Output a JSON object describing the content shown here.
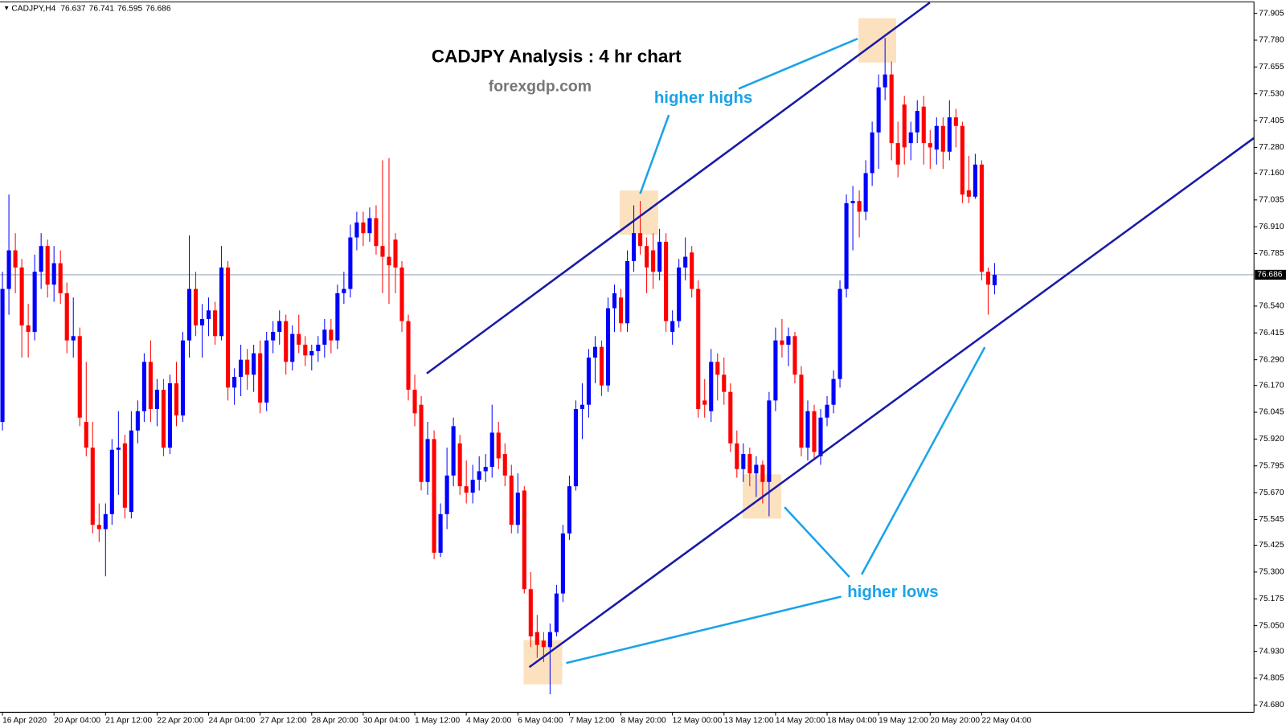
{
  "chart_data": {
    "type": "candlestick",
    "symbol": "CADJPY,H4",
    "title": "CADJPY Analysis : 4 hr chart",
    "subtitle": "forexgdp.com",
    "annotations": [
      "higher highs",
      "higher lows"
    ],
    "bull_color": "#0000ff",
    "bear_color": "#ff0000",
    "ylim": [
      74.646,
      77.959
    ],
    "yticks": [
      77.905,
      {
        "value": 77.78,
        "label": "77.780"
      },
      77.655,
      {
        "value": 77.53,
        "label": "77.530"
      },
      77.405,
      {
        "value": 77.28,
        "label": "77.280"
      },
      {
        "value": 77.16,
        "label": "77.160"
      },
      77.035,
      {
        "value": 76.91,
        "label": "76.910"
      },
      76.785,
      {
        "value": 76.54,
        "label": "76.540"
      },
      76.415,
      {
        "value": 76.29,
        "label": "76.290"
      },
      {
        "value": 76.17,
        "label": "76.170"
      },
      76.045,
      {
        "value": 75.92,
        "label": "75.920"
      },
      75.795,
      {
        "value": 75.67,
        "label": "75.670"
      },
      75.545,
      75.425,
      {
        "value": 75.3,
        "label": "75.300"
      },
      75.175,
      {
        "value": 75.05,
        "label": "75.050"
      },
      {
        "value": 74.93,
        "label": "74.930"
      },
      74.805,
      {
        "value": 74.68,
        "label": "74.680"
      }
    ],
    "categories": [
      "16 Apr 2020",
      null,
      null,
      null,
      null,
      null,
      null,
      null,
      "20 Apr 04:00",
      null,
      null,
      null,
      null,
      null,
      null,
      null,
      "21 Apr 12:00",
      null,
      null,
      null,
      null,
      null,
      null,
      null,
      "22 Apr 20:00",
      null,
      null,
      null,
      null,
      null,
      null,
      null,
      "24 Apr 04:00",
      null,
      null,
      null,
      null,
      null,
      null,
      null,
      "27 Apr 12:00",
      null,
      null,
      null,
      null,
      null,
      null,
      null,
      "28 Apr 20:00",
      null,
      null,
      null,
      null,
      null,
      null,
      null,
      "30 Apr 04:00",
      null,
      null,
      null,
      null,
      null,
      null,
      null,
      "1 May 12:00",
      null,
      null,
      null,
      null,
      null,
      null,
      null,
      "4 May 20:00",
      null,
      null,
      null,
      null,
      null,
      null,
      null,
      "6 May 04:00",
      null,
      null,
      null,
      null,
      null,
      null,
      null,
      "7 May 12:00",
      null,
      null,
      null,
      null,
      null,
      null,
      null,
      "8 May 20:00",
      null,
      null,
      null,
      null,
      null,
      null,
      null,
      "12 May 00:00",
      null,
      null,
      null,
      null,
      null,
      null,
      null,
      "13 May 12:00",
      null,
      null,
      null,
      null,
      null,
      null,
      null,
      "14 May 20:00",
      null,
      null,
      null,
      null,
      null,
      null,
      null,
      "18 May 04:00",
      null,
      null,
      null,
      null,
      null,
      null,
      null,
      "19 May 12:00",
      null,
      null,
      null,
      null,
      null,
      null,
      null,
      "20 May 20:00",
      null,
      null,
      null,
      null,
      null,
      null,
      null,
      "22 May 04:00",
      null,
      null
    ],
    "candles": [
      {
        "o": 76.0,
        "h": 76.7,
        "l": 75.96,
        "c": 76.62
      },
      {
        "o": 76.62,
        "h": 77.06,
        "l": 76.5,
        "c": 76.8
      },
      {
        "o": 76.8,
        "h": 76.88,
        "l": 76.6,
        "c": 76.72
      },
      {
        "o": 76.72,
        "h": 76.76,
        "l": 76.3,
        "c": 76.45
      },
      {
        "o": 76.45,
        "h": 76.55,
        "l": 76.3,
        "c": 76.42
      },
      {
        "o": 76.42,
        "h": 76.78,
        "l": 76.38,
        "c": 76.7
      },
      {
        "o": 76.7,
        "h": 76.88,
        "l": 76.62,
        "c": 76.82
      },
      {
        "o": 76.82,
        "h": 76.85,
        "l": 76.58,
        "c": 76.64
      },
      {
        "o": 76.64,
        "h": 76.82,
        "l": 76.56,
        "c": 76.74
      },
      {
        "o": 76.74,
        "h": 76.8,
        "l": 76.55,
        "c": 76.6
      },
      {
        "o": 76.6,
        "h": 76.65,
        "l": 76.32,
        "c": 76.38
      },
      {
        "o": 76.38,
        "h": 76.58,
        "l": 76.3,
        "c": 76.4
      },
      {
        "o": 76.4,
        "h": 76.44,
        "l": 75.98,
        "c": 76.02
      },
      {
        "o": 76.0,
        "h": 76.28,
        "l": 75.84,
        "c": 75.88
      },
      {
        "o": 75.88,
        "h": 76.0,
        "l": 75.48,
        "c": 75.52
      },
      {
        "o": 75.52,
        "h": 75.62,
        "l": 75.44,
        "c": 75.5
      },
      {
        "o": 75.5,
        "h": 75.62,
        "l": 75.28,
        "c": 75.57
      },
      {
        "o": 75.57,
        "h": 75.92,
        "l": 75.52,
        "c": 75.87
      },
      {
        "o": 75.87,
        "h": 76.05,
        "l": 75.66,
        "c": 75.88
      },
      {
        "o": 75.9,
        "h": 75.94,
        "l": 75.55,
        "c": 75.6
      },
      {
        "o": 75.58,
        "h": 76.05,
        "l": 75.55,
        "c": 75.96
      },
      {
        "o": 75.96,
        "h": 76.1,
        "l": 75.9,
        "c": 76.05
      },
      {
        "o": 76.05,
        "h": 76.32,
        "l": 76.0,
        "c": 76.28
      },
      {
        "o": 76.28,
        "h": 76.38,
        "l": 76.0,
        "c": 76.06
      },
      {
        "o": 76.06,
        "h": 76.2,
        "l": 75.98,
        "c": 76.15
      },
      {
        "o": 76.15,
        "h": 76.2,
        "l": 75.84,
        "c": 75.88
      },
      {
        "o": 75.88,
        "h": 76.22,
        "l": 75.85,
        "c": 76.18
      },
      {
        "o": 76.18,
        "h": 76.28,
        "l": 75.98,
        "c": 76.03
      },
      {
        "o": 76.03,
        "h": 76.42,
        "l": 76.0,
        "c": 76.38
      },
      {
        "o": 76.38,
        "h": 76.87,
        "l": 76.3,
        "c": 76.62
      },
      {
        "o": 76.62,
        "h": 76.7,
        "l": 76.4,
        "c": 76.45
      },
      {
        "o": 76.45,
        "h": 76.55,
        "l": 76.3,
        "c": 76.48
      },
      {
        "o": 76.48,
        "h": 76.58,
        "l": 76.4,
        "c": 76.52
      },
      {
        "o": 76.52,
        "h": 76.56,
        "l": 76.36,
        "c": 76.4
      },
      {
        "o": 76.4,
        "h": 76.82,
        "l": 76.38,
        "c": 76.72
      },
      {
        "o": 76.72,
        "h": 76.75,
        "l": 76.1,
        "c": 76.16
      },
      {
        "o": 76.16,
        "h": 76.25,
        "l": 76.08,
        "c": 76.21
      },
      {
        "o": 76.21,
        "h": 76.36,
        "l": 76.12,
        "c": 76.29
      },
      {
        "o": 76.29,
        "h": 76.34,
        "l": 76.15,
        "c": 76.22
      },
      {
        "o": 76.22,
        "h": 76.36,
        "l": 76.14,
        "c": 76.32
      },
      {
        "o": 76.32,
        "h": 76.38,
        "l": 76.04,
        "c": 76.09
      },
      {
        "o": 76.09,
        "h": 76.42,
        "l": 76.05,
        "c": 76.38
      },
      {
        "o": 76.38,
        "h": 76.47,
        "l": 76.32,
        "c": 76.42
      },
      {
        "o": 76.42,
        "h": 76.52,
        "l": 76.36,
        "c": 76.47
      },
      {
        "o": 76.47,
        "h": 76.5,
        "l": 76.22,
        "c": 76.28
      },
      {
        "o": 76.28,
        "h": 76.45,
        "l": 76.24,
        "c": 76.41
      },
      {
        "o": 76.41,
        "h": 76.5,
        "l": 76.32,
        "c": 76.36
      },
      {
        "o": 76.36,
        "h": 76.4,
        "l": 76.26,
        "c": 76.31
      },
      {
        "o": 76.31,
        "h": 76.36,
        "l": 76.24,
        "c": 76.33
      },
      {
        "o": 76.33,
        "h": 76.4,
        "l": 76.28,
        "c": 76.36
      },
      {
        "o": 76.36,
        "h": 76.48,
        "l": 76.3,
        "c": 76.43
      },
      {
        "o": 76.43,
        "h": 76.48,
        "l": 76.32,
        "c": 76.38
      },
      {
        "o": 76.38,
        "h": 76.64,
        "l": 76.34,
        "c": 76.6
      },
      {
        "o": 76.6,
        "h": 76.7,
        "l": 76.55,
        "c": 76.62
      },
      {
        "o": 76.62,
        "h": 76.92,
        "l": 76.58,
        "c": 76.86
      },
      {
        "o": 76.86,
        "h": 76.98,
        "l": 76.8,
        "c": 76.93
      },
      {
        "o": 76.93,
        "h": 76.98,
        "l": 76.82,
        "c": 76.88
      },
      {
        "o": 76.88,
        "h": 77.0,
        "l": 76.84,
        "c": 76.95
      },
      {
        "o": 76.95,
        "h": 77.01,
        "l": 76.78,
        "c": 76.82
      },
      {
        "o": 76.82,
        "h": 77.22,
        "l": 76.6,
        "c": 76.77
      },
      {
        "o": 76.77,
        "h": 77.23,
        "l": 76.55,
        "c": 76.73
      },
      {
        "o": 76.85,
        "h": 76.88,
        "l": 76.6,
        "c": 76.72
      },
      {
        "o": 76.72,
        "h": 76.75,
        "l": 76.42,
        "c": 76.47
      },
      {
        "o": 76.47,
        "h": 76.5,
        "l": 76.1,
        "c": 76.15
      },
      {
        "o": 76.15,
        "h": 76.22,
        "l": 75.98,
        "c": 76.04
      },
      {
        "o": 76.08,
        "h": 76.12,
        "l": 75.68,
        "c": 75.72
      },
      {
        "o": 75.72,
        "h": 76.0,
        "l": 75.66,
        "c": 75.92
      },
      {
        "o": 75.92,
        "h": 75.96,
        "l": 75.36,
        "c": 75.39
      },
      {
        "o": 75.39,
        "h": 75.62,
        "l": 75.37,
        "c": 75.57
      },
      {
        "o": 75.57,
        "h": 75.88,
        "l": 75.5,
        "c": 75.75
      },
      {
        "o": 75.75,
        "h": 76.02,
        "l": 75.7,
        "c": 75.98
      },
      {
        "o": 75.9,
        "h": 75.94,
        "l": 75.66,
        "c": 75.7
      },
      {
        "o": 75.7,
        "h": 75.82,
        "l": 75.62,
        "c": 75.67
      },
      {
        "o": 75.67,
        "h": 75.8,
        "l": 75.62,
        "c": 75.73
      },
      {
        "o": 75.73,
        "h": 75.84,
        "l": 75.68,
        "c": 75.77
      },
      {
        "o": 75.77,
        "h": 75.85,
        "l": 75.72,
        "c": 75.79
      },
      {
        "o": 75.79,
        "h": 76.08,
        "l": 75.74,
        "c": 75.95
      },
      {
        "o": 75.95,
        "h": 76.0,
        "l": 75.78,
        "c": 75.83
      },
      {
        "o": 75.85,
        "h": 75.9,
        "l": 75.7,
        "c": 75.75
      },
      {
        "o": 75.75,
        "h": 75.8,
        "l": 75.48,
        "c": 75.52
      },
      {
        "o": 75.52,
        "h": 75.76,
        "l": 75.48,
        "c": 75.67
      },
      {
        "o": 75.68,
        "h": 75.7,
        "l": 75.2,
        "c": 75.22
      },
      {
        "o": 75.22,
        "h": 75.3,
        "l": 74.95,
        "c": 75.0
      },
      {
        "o": 75.02,
        "h": 75.1,
        "l": 74.9,
        "c": 74.96
      },
      {
        "o": 74.98,
        "h": 75.02,
        "l": 74.88,
        "c": 74.95
      },
      {
        "o": 74.95,
        "h": 75.06,
        "l": 74.73,
        "c": 75.02
      },
      {
        "o": 75.02,
        "h": 75.24,
        "l": 75.0,
        "c": 75.2
      },
      {
        "o": 75.2,
        "h": 75.52,
        "l": 75.16,
        "c": 75.48
      },
      {
        "o": 75.48,
        "h": 75.75,
        "l": 75.45,
        "c": 75.7
      },
      {
        "o": 75.7,
        "h": 76.1,
        "l": 75.68,
        "c": 76.06
      },
      {
        "o": 76.06,
        "h": 76.18,
        "l": 75.92,
        "c": 76.08
      },
      {
        "o": 76.08,
        "h": 76.34,
        "l": 76.02,
        "c": 76.3
      },
      {
        "o": 76.3,
        "h": 76.4,
        "l": 76.18,
        "c": 76.35
      },
      {
        "o": 76.35,
        "h": 76.38,
        "l": 76.12,
        "c": 76.17
      },
      {
        "o": 76.17,
        "h": 76.58,
        "l": 76.14,
        "c": 76.53
      },
      {
        "o": 76.53,
        "h": 76.64,
        "l": 76.42,
        "c": 76.6
      },
      {
        "o": 76.58,
        "h": 76.62,
        "l": 76.42,
        "c": 76.46
      },
      {
        "o": 76.46,
        "h": 76.8,
        "l": 76.42,
        "c": 76.75
      },
      {
        "o": 76.75,
        "h": 77.01,
        "l": 76.7,
        "c": 76.88
      },
      {
        "o": 76.88,
        "h": 77.03,
        "l": 76.78,
        "c": 76.82
      },
      {
        "o": 76.82,
        "h": 76.86,
        "l": 76.6,
        "c": 76.72
      },
      {
        "o": 76.8,
        "h": 76.88,
        "l": 76.62,
        "c": 76.7
      },
      {
        "o": 76.7,
        "h": 76.9,
        "l": 76.66,
        "c": 76.84
      },
      {
        "o": 76.84,
        "h": 76.88,
        "l": 76.42,
        "c": 76.47
      },
      {
        "o": 76.42,
        "h": 76.52,
        "l": 76.36,
        "c": 76.47
      },
      {
        "o": 76.47,
        "h": 76.76,
        "l": 76.44,
        "c": 76.72
      },
      {
        "o": 76.72,
        "h": 76.86,
        "l": 76.66,
        "c": 76.77
      },
      {
        "o": 76.79,
        "h": 76.82,
        "l": 76.58,
        "c": 76.62
      },
      {
        "o": 76.62,
        "h": 76.66,
        "l": 76.02,
        "c": 76.06
      },
      {
        "o": 76.1,
        "h": 76.2,
        "l": 76.02,
        "c": 76.08
      },
      {
        "o": 76.05,
        "h": 76.34,
        "l": 76.0,
        "c": 76.28
      },
      {
        "o": 76.28,
        "h": 76.32,
        "l": 76.1,
        "c": 76.22
      },
      {
        "o": 76.22,
        "h": 76.3,
        "l": 76.08,
        "c": 76.14
      },
      {
        "o": 76.14,
        "h": 76.18,
        "l": 75.86,
        "c": 75.9
      },
      {
        "o": 75.9,
        "h": 75.96,
        "l": 75.74,
        "c": 75.78
      },
      {
        "o": 75.78,
        "h": 75.9,
        "l": 75.72,
        "c": 75.85
      },
      {
        "o": 75.85,
        "h": 75.88,
        "l": 75.7,
        "c": 75.76
      },
      {
        "o": 75.76,
        "h": 75.84,
        "l": 75.65,
        "c": 75.8
      },
      {
        "o": 75.8,
        "h": 75.82,
        "l": 75.62,
        "c": 75.72
      },
      {
        "o": 75.72,
        "h": 76.14,
        "l": 75.56,
        "c": 76.1
      },
      {
        "o": 76.1,
        "h": 76.44,
        "l": 76.05,
        "c": 76.38
      },
      {
        "o": 76.38,
        "h": 76.48,
        "l": 76.3,
        "c": 76.36
      },
      {
        "o": 76.36,
        "h": 76.44,
        "l": 76.26,
        "c": 76.4
      },
      {
        "o": 76.4,
        "h": 76.42,
        "l": 76.18,
        "c": 76.22
      },
      {
        "o": 76.22,
        "h": 76.26,
        "l": 75.84,
        "c": 75.88
      },
      {
        "o": 75.88,
        "h": 76.1,
        "l": 75.82,
        "c": 76.05
      },
      {
        "o": 76.05,
        "h": 76.08,
        "l": 75.82,
        "c": 75.86
      },
      {
        "o": 75.84,
        "h": 76.06,
        "l": 75.8,
        "c": 76.02
      },
      {
        "o": 76.02,
        "h": 76.12,
        "l": 75.98,
        "c": 76.08
      },
      {
        "o": 76.08,
        "h": 76.24,
        "l": 76.04,
        "c": 76.2
      },
      {
        "o": 76.2,
        "h": 76.66,
        "l": 76.16,
        "c": 76.62
      },
      {
        "o": 76.62,
        "h": 77.06,
        "l": 76.58,
        "c": 77.02
      },
      {
        "o": 77.02,
        "h": 77.1,
        "l": 76.8,
        "c": 77.03
      },
      {
        "o": 77.03,
        "h": 77.08,
        "l": 76.86,
        "c": 76.98
      },
      {
        "o": 76.98,
        "h": 77.22,
        "l": 76.94,
        "c": 77.16
      },
      {
        "o": 77.16,
        "h": 77.4,
        "l": 77.1,
        "c": 77.35
      },
      {
        "o": 77.35,
        "h": 77.62,
        "l": 77.18,
        "c": 77.56
      },
      {
        "o": 77.56,
        "h": 77.79,
        "l": 77.5,
        "c": 77.62
      },
      {
        "o": 77.62,
        "h": 77.68,
        "l": 77.22,
        "c": 77.3
      },
      {
        "o": 77.3,
        "h": 77.4,
        "l": 77.14,
        "c": 77.2
      },
      {
        "o": 77.48,
        "h": 77.52,
        "l": 77.2,
        "c": 77.28
      },
      {
        "o": 77.3,
        "h": 77.4,
        "l": 77.22,
        "c": 77.35
      },
      {
        "o": 77.35,
        "h": 77.5,
        "l": 77.3,
        "c": 77.45
      },
      {
        "o": 77.47,
        "h": 77.52,
        "l": 77.2,
        "c": 77.3
      },
      {
        "o": 77.3,
        "h": 77.36,
        "l": 77.18,
        "c": 77.28
      },
      {
        "o": 77.27,
        "h": 77.42,
        "l": 77.2,
        "c": 77.38
      },
      {
        "o": 77.38,
        "h": 77.42,
        "l": 77.18,
        "c": 77.26
      },
      {
        "o": 77.26,
        "h": 77.5,
        "l": 77.22,
        "c": 77.42
      },
      {
        "o": 77.42,
        "h": 77.46,
        "l": 77.28,
        "c": 77.38
      },
      {
        "o": 77.38,
        "h": 77.4,
        "l": 77.02,
        "c": 77.06
      },
      {
        "o": 77.08,
        "h": 77.24,
        "l": 77.02,
        "c": 77.05
      },
      {
        "o": 77.05,
        "h": 77.25,
        "l": 77.04,
        "c": 77.2
      },
      {
        "o": 77.2,
        "h": 77.22,
        "l": 76.66,
        "c": 76.7
      },
      {
        "o": 76.7,
        "h": 76.72,
        "l": 76.5,
        "c": 76.64
      },
      {
        "o": 76.637,
        "h": 76.741,
        "l": 76.595,
        "c": 76.686
      }
    ]
  }
}
